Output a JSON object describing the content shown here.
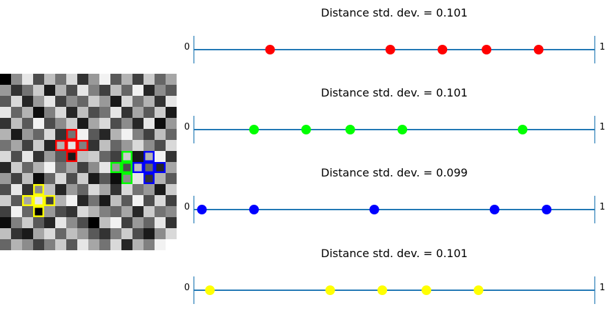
{
  "grid_image": {
    "rows": 16,
    "cols": 16,
    "cells": [
      [
        0.0,
        0.55,
        0.9,
        0.3,
        0.75,
        0.45,
        0.85,
        0.2,
        0.6,
        0.95,
        0.35,
        0.7,
        0.25,
        0.8,
        0.4,
        0.65
      ],
      [
        0.6,
        0.2,
        0.45,
        0.8,
        0.1,
        0.7,
        0.3,
        0.9,
        0.5,
        0.25,
        0.75,
        0.4,
        0.95,
        0.15,
        0.55,
        0.35
      ],
      [
        0.35,
        0.85,
        0.15,
        0.6,
        0.9,
        0.25,
        0.55,
        0.4,
        0.8,
        0.6,
        0.1,
        0.85,
        0.45,
        0.7,
        0.2,
        0.9
      ],
      [
        0.9,
        0.4,
        0.7,
        0.05,
        0.5,
        0.85,
        0.15,
        0.75,
        0.3,
        0.45,
        0.9,
        0.2,
        0.65,
        0.35,
        0.8,
        0.1
      ],
      [
        0.2,
        0.75,
        0.35,
        0.95,
        0.3,
        0.55,
        0.8,
        0.1,
        0.65,
        0.85,
        0.3,
        0.55,
        0.15,
        0.9,
        0.05,
        0.6
      ],
      [
        0.7,
        0.1,
        0.6,
        0.4,
        0.85,
        0.2,
        0.45,
        0.95,
        0.35,
        0.15,
        0.7,
        0.95,
        0.5,
        0.25,
        0.75,
        0.4
      ],
      [
        0.45,
        0.65,
        0.25,
        0.8,
        0.15,
        0.7,
        0.9,
        0.5,
        0.2,
        0.75,
        0.4,
        0.6,
        0.85,
        0.55,
        0.3,
        0.85
      ],
      [
        0.85,
        0.3,
        0.9,
        0.2,
        0.6,
        0.35,
        0.1,
        0.75,
        0.8,
        0.4,
        0.25,
        0.8,
        0.1,
        0.7,
        0.95,
        0.2
      ],
      [
        0.15,
        0.8,
        0.4,
        0.7,
        0.95,
        0.45,
        0.65,
        0.25,
        0.55,
        0.9,
        0.6,
        0.3,
        0.75,
        0.4,
        0.15,
        0.65
      ],
      [
        0.6,
        0.25,
        0.75,
        0.05,
        0.4,
        0.85,
        0.3,
        0.8,
        0.1,
        0.35,
        0.05,
        0.55,
        0.9,
        0.2,
        0.7,
        0.35
      ],
      [
        0.3,
        0.9,
        0.2,
        0.55,
        0.75,
        0.15,
        0.6,
        0.4,
        0.85,
        0.65,
        0.2,
        0.85,
        0.45,
        0.6,
        0.1,
        0.8
      ],
      [
        0.8,
        0.35,
        0.65,
        0.9,
        0.25,
        0.7,
        0.95,
        0.15,
        0.45,
        0.1,
        0.75,
        0.35,
        0.95,
        0.3,
        0.85,
        0.25
      ],
      [
        0.25,
        0.95,
        0.4,
        0.0,
        0.6,
        0.3,
        0.2,
        0.85,
        0.7,
        0.5,
        0.4,
        0.65,
        0.15,
        0.8,
        0.45,
        0.55
      ],
      [
        0.05,
        0.5,
        0.8,
        0.35,
        0.15,
        0.9,
        0.55,
        0.3,
        0.0,
        0.75,
        0.95,
        0.25,
        0.6,
        0.4,
        0.9,
        0.2
      ],
      [
        0.75,
        0.2,
        0.1,
        0.65,
        0.85,
        0.4,
        0.75,
        0.6,
        0.35,
        0.2,
        0.5,
        0.8,
        0.3,
        0.1,
        0.55,
        0.85
      ],
      [
        0.4,
        0.7,
        0.55,
        0.25,
        0.5,
        0.8,
        0.35,
        0.9,
        0.65,
        0.45,
        0.85,
        0.15,
        0.7,
        0.5,
        0.95,
        1.0
      ]
    ],
    "crosses": [
      {
        "color": "#ff0000",
        "center_row": 6,
        "center_col": 6
      },
      {
        "color": "#00ff00",
        "center_row": 8,
        "center_col": 11
      },
      {
        "color": "#0000ff",
        "center_row": 8,
        "center_col": 13
      },
      {
        "color": "#ffff00",
        "center_row": 11,
        "center_col": 3
      }
    ]
  },
  "chart_data": [
    {
      "type": "scatter",
      "title": "Distance std. dev. = 0.101",
      "xlim": [
        0,
        1
      ],
      "axis_labels": {
        "left": "0",
        "right": "1"
      },
      "color": "#ff0000",
      "x": [
        0.19,
        0.49,
        0.62,
        0.73,
        0.86
      ]
    },
    {
      "type": "scatter",
      "title": "Distance std. dev. = 0.101",
      "xlim": [
        0,
        1
      ],
      "axis_labels": {
        "left": "0",
        "right": "1"
      },
      "color": "#00ff00",
      "x": [
        0.15,
        0.28,
        0.39,
        0.52,
        0.82
      ]
    },
    {
      "type": "scatter",
      "title": "Distance std. dev. = 0.099",
      "xlim": [
        0,
        1
      ],
      "axis_labels": {
        "left": "0",
        "right": "1"
      },
      "color": "#0000ff",
      "x": [
        0.02,
        0.15,
        0.45,
        0.75,
        0.88
      ]
    },
    {
      "type": "scatter",
      "title": "Distance std. dev. = 0.101",
      "xlim": [
        0,
        1
      ],
      "axis_labels": {
        "left": "0",
        "right": "1"
      },
      "color": "#ffff00",
      "x": [
        0.04,
        0.34,
        0.47,
        0.58,
        0.71
      ]
    }
  ],
  "line_color": "#1f77b4"
}
